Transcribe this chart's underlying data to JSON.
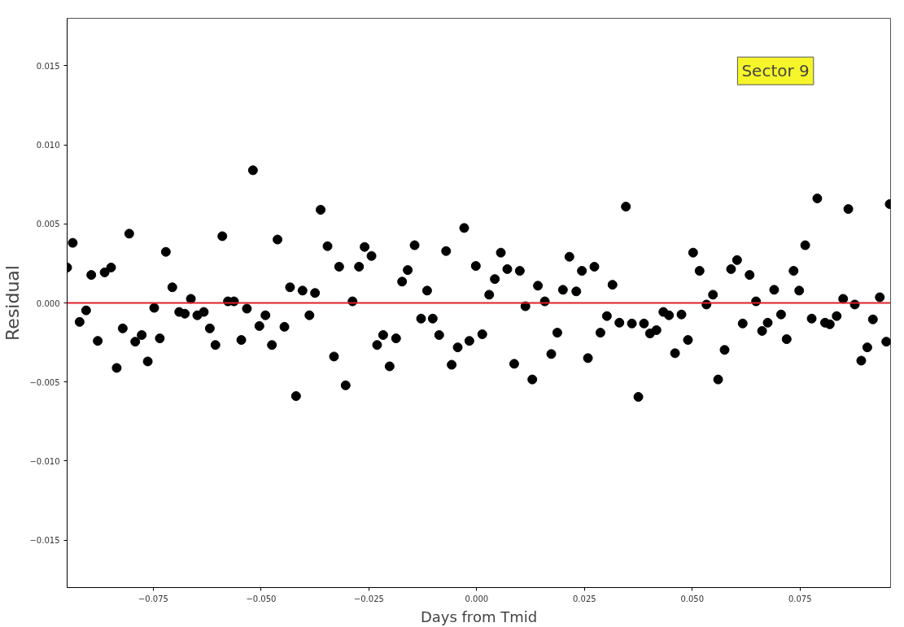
{
  "chart_data": {
    "type": "scatter",
    "xlabel": "Days from Tmid",
    "ylabel": "Residual",
    "annotations": [
      "Sector 9"
    ],
    "x": [
      -0.095,
      -0.0937,
      -0.0921,
      -0.0906,
      -0.0894,
      -0.0879,
      -0.0863,
      -0.0848,
      -0.0835,
      -0.0821,
      -0.0806,
      -0.0792,
      -0.0777,
      -0.0763,
      -0.0748,
      -0.0735,
      -0.0721,
      -0.0706,
      -0.069,
      -0.0677,
      -0.0663,
      -0.0648,
      -0.0633,
      -0.0619,
      -0.0606,
      -0.059,
      -0.0577,
      -0.0563,
      -0.0546,
      -0.0533,
      -0.0519,
      -0.0504,
      -0.049,
      -0.0475,
      -0.0462,
      -0.0446,
      -0.0433,
      -0.0419,
      -0.0404,
      -0.0388,
      -0.0375,
      -0.0362,
      -0.0346,
      -0.0331,
      -0.0319,
      -0.0304,
      -0.0288,
      -0.0273,
      -0.026,
      -0.0244,
      -0.0231,
      -0.0217,
      -0.0202,
      -0.0187,
      -0.0173,
      -0.016,
      -0.0144,
      -0.0129,
      -0.0115,
      -0.0102,
      -0.0087,
      -0.0071,
      -0.0058,
      -0.0044,
      -0.0029,
      -0.0017,
      -0.0002,
      0.0013,
      0.0029,
      0.0042,
      0.0056,
      0.0071,
      0.0087,
      0.01,
      0.0113,
      0.0129,
      0.0142,
      0.0158,
      0.0173,
      0.0187,
      0.02,
      0.0215,
      0.0231,
      0.0244,
      0.0258,
      0.0273,
      0.0287,
      0.0302,
      0.0315,
      0.0331,
      0.0346,
      0.036,
      0.0375,
      0.0388,
      0.0402,
      0.0417,
      0.0433,
      0.0446,
      0.046,
      0.0475,
      0.049,
      0.0502,
      0.0517,
      0.0533,
      0.0548,
      0.056,
      0.0575,
      0.059,
      0.0604,
      0.0617,
      0.0633,
      0.0648,
      0.0662,
      0.0675,
      0.069,
      0.0706,
      0.0719,
      0.0735,
      0.0748,
      0.0762,
      0.0777,
      0.079,
      0.0808,
      0.0819,
      0.0835,
      0.085,
      0.0862,
      0.0877,
      0.0892,
      0.0906,
      0.0919,
      0.0935,
      0.095,
      0.0958
    ],
    "series": [
      {
        "color": "#000000",
        "values": [
          0.00224,
          0.0038,
          -0.0012,
          -0.00047,
          0.00177,
          -0.0024,
          0.00193,
          0.00224,
          -0.00411,
          -0.00161,
          0.00438,
          -0.00245,
          -0.00203,
          -0.0037,
          -0.00031,
          -0.00224,
          0.00323,
          0.00099,
          -0.00057,
          -0.00068,
          0.00026,
          -0.00078,
          -0.00057,
          -0.00161,
          -0.00266,
          0.00422,
          0.0001,
          0.0001,
          -0.00234,
          -0.00036,
          0.00839,
          -0.00146,
          -0.00078,
          -0.00266,
          0.00401,
          -0.00151,
          0.00099,
          -0.00589,
          0.00078,
          -0.00078,
          0.00063,
          0.00589,
          0.00359,
          -0.00339,
          0.00229,
          -0.00521,
          0.0001,
          0.00229,
          0.00354,
          0.00297,
          -0.00266,
          -0.00203,
          -0.00401,
          -0.00224,
          0.00135,
          0.00208,
          0.00365,
          -0.00099,
          0.00078,
          -0.00099,
          -0.00203,
          0.00328,
          -0.00391,
          -0.00281,
          0.00474,
          -0.0024,
          0.00234,
          -0.00198,
          0.00052,
          0.00151,
          0.00318,
          0.00214,
          -0.00385,
          0.00203,
          -0.00021,
          -0.00484,
          0.00109,
          0.0001,
          -0.00323,
          -0.00188,
          0.00083,
          0.00292,
          0.00073,
          0.00203,
          -0.00349,
          0.00229,
          -0.00188,
          -0.00083,
          0.00115,
          -0.00125,
          0.00609,
          -0.0013,
          -0.00594,
          -0.0013,
          -0.00193,
          -0.00172,
          -0.00057,
          -0.00078,
          -0.00318,
          -0.00073,
          -0.00234,
          0.00318,
          0.00203,
          -0.0001,
          0.00052,
          -0.00484,
          -0.00297,
          0.00214,
          0.00271,
          -0.0013,
          0.00177,
          0.0001,
          -0.00177,
          -0.00125,
          0.00083,
          -0.00073,
          -0.00229,
          0.00203,
          0.00078,
          0.00365,
          -0.00099,
          0.00661,
          -0.00125,
          -0.00135,
          -0.00083,
          0.00026,
          0.00594,
          -0.0001,
          -0.00365,
          -0.00281,
          -0.00104,
          0.00036,
          -0.00245,
          0.00625
        ]
      }
    ],
    "marker": "circle",
    "xlim": [
      -0.095,
      0.096
    ],
    "ylim": [
      -0.018,
      0.018
    ],
    "xticks": [
      {
        "value": -0.075,
        "label": "−0.075"
      },
      {
        "value": -0.05,
        "label": "−0.050"
      },
      {
        "value": -0.025,
        "label": "−0.025"
      },
      {
        "value": 0,
        "label": "0.000"
      },
      {
        "value": 0.025,
        "label": "0.025"
      },
      {
        "value": 0.05,
        "label": "0.050"
      },
      {
        "value": 0.075,
        "label": "0.075"
      }
    ],
    "yticks": [
      {
        "value": -0.015,
        "label": "−0.015"
      },
      {
        "value": -0.01,
        "label": "−0.010"
      },
      {
        "value": -0.005,
        "label": "−0.005"
      },
      {
        "value": 0,
        "label": "0.000"
      },
      {
        "value": 0.005,
        "label": "0.005"
      },
      {
        "value": 0.01,
        "label": "0.010"
      },
      {
        "value": 0.015,
        "label": "0.015"
      }
    ],
    "ref_lines": [
      {
        "axis": "y",
        "value": 0,
        "color": "#e0202a"
      }
    ]
  }
}
